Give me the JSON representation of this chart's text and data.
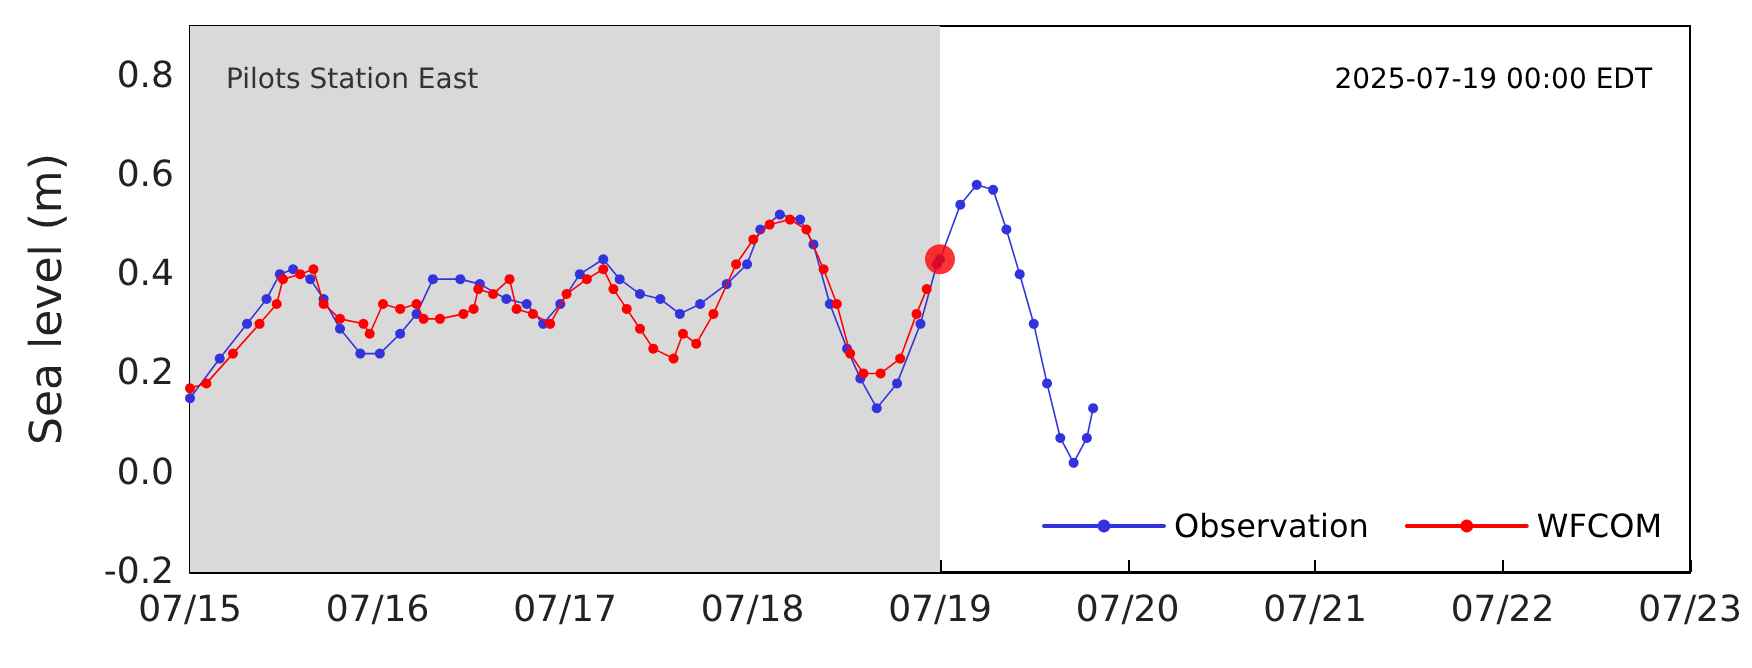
{
  "chart_data": {
    "type": "line",
    "ylabel": "Sea level (m)",
    "annotations": [
      "Pilots Station East",
      "2025-07-19 00:00 EDT"
    ],
    "xlim": [
      "2025-07-15",
      "2025-07-23"
    ],
    "xticks": [
      {
        "value": "2025-07-15",
        "label": "07/15"
      },
      {
        "value": "2025-07-16",
        "label": "07/16"
      },
      {
        "value": "2025-07-17",
        "label": "07/17"
      },
      {
        "value": "2025-07-18",
        "label": "07/18"
      },
      {
        "value": "2025-07-19",
        "label": "07/19"
      },
      {
        "value": "2025-07-20",
        "label": "07/20"
      },
      {
        "value": "2025-07-21",
        "label": "07/21"
      },
      {
        "value": "2025-07-22",
        "label": "07/22"
      },
      {
        "value": "2025-07-23",
        "label": "07/23"
      }
    ],
    "ylim": [
      -0.2,
      0.9
    ],
    "yticks": [
      -0.2,
      {
        "value": 0,
        "label": "0.0"
      },
      0.2,
      0.4,
      0.6,
      0.8
    ],
    "grid": false,
    "legend": "bottom right",
    "marker": "circle",
    "line_style": "solid",
    "bands": [
      {
        "axis": "x",
        "from": "2025-07-15",
        "to": "2025-07-19",
        "color": "#d9d9d9"
      }
    ],
    "series": [
      {
        "name": "Observation",
        "color": "#3333dd",
        "x": [
          "2025-07-15T00:00",
          "2025-07-15T03:48",
          "2025-07-15T07:18",
          "2025-07-15T09:48",
          "2025-07-15T11:30",
          "2025-07-15T13:12",
          "2025-07-15T15:24",
          "2025-07-15T17:06",
          "2025-07-15T19:12",
          "2025-07-15T21:48",
          "2025-07-16T00:18",
          "2025-07-16T02:54",
          "2025-07-16T05:00",
          "2025-07-16T07:06",
          "2025-07-16T10:36",
          "2025-07-16T13:06",
          "2025-07-16T16:30",
          "2025-07-16T19:06",
          "2025-07-16T21:12",
          "2025-07-16T23:24",
          "2025-07-17T01:54",
          "2025-07-17T04:54",
          "2025-07-17T07:00",
          "2025-07-17T09:36",
          "2025-07-17T12:12",
          "2025-07-17T14:42",
          "2025-07-17T17:18",
          "2025-07-17T20:42",
          "2025-07-17T23:18",
          "2025-07-18T01:00",
          "2025-07-18T03:30",
          "2025-07-18T06:06",
          "2025-07-18T07:48",
          "2025-07-18T09:54",
          "2025-07-18T12:06",
          "2025-07-18T13:48",
          "2025-07-18T15:54",
          "2025-07-18T18:30",
          "2025-07-18T21:30",
          "2025-07-18T23:36",
          "2025-07-19T00:00",
          "2025-07-19T02:36",
          "2025-07-19T04:42",
          "2025-07-19T06:48",
          "2025-07-19T08:30",
          "2025-07-19T10:12",
          "2025-07-19T12:00",
          "2025-07-19T13:42",
          "2025-07-19T15:24",
          "2025-07-19T17:06",
          "2025-07-19T18:48",
          "2025-07-19T19:36"
        ],
        "values": [
          0.15,
          0.23,
          0.3,
          0.35,
          0.4,
          0.41,
          0.39,
          0.35,
          0.29,
          0.24,
          0.24,
          0.28,
          0.32,
          0.39,
          0.39,
          0.38,
          0.35,
          0.34,
          0.3,
          0.34,
          0.4,
          0.43,
          0.39,
          0.36,
          0.35,
          0.32,
          0.34,
          0.38,
          0.42,
          0.49,
          0.52,
          0.51,
          0.46,
          0.34,
          0.25,
          0.19,
          0.13,
          0.18,
          0.3,
          0.42,
          0.43,
          0.54,
          0.58,
          0.57,
          0.49,
          0.4,
          0.3,
          0.18,
          0.07,
          0.02,
          0.07,
          0.13
        ]
      },
      {
        "name": "WFCOM",
        "color": "#ff0000",
        "x": [
          "2025-07-15T00:00",
          "2025-07-15T02:06",
          "2025-07-15T05:30",
          "2025-07-15T08:54",
          "2025-07-15T11:06",
          "2025-07-15T11:54",
          "2025-07-15T14:06",
          "2025-07-15T15:48",
          "2025-07-15T17:06",
          "2025-07-15T19:12",
          "2025-07-15T22:12",
          "2025-07-15T23:00",
          "2025-07-16T00:42",
          "2025-07-16T02:54",
          "2025-07-16T05:00",
          "2025-07-16T05:54",
          "2025-07-16T08:00",
          "2025-07-16T11:00",
          "2025-07-16T12:18",
          "2025-07-16T12:54",
          "2025-07-16T14:48",
          "2025-07-16T16:54",
          "2025-07-16T17:48",
          "2025-07-16T19:54",
          "2025-07-16T22:06",
          "2025-07-17T00:12",
          "2025-07-17T02:48",
          "2025-07-17T04:54",
          "2025-07-17T06:12",
          "2025-07-17T07:54",
          "2025-07-17T09:36",
          "2025-07-17T11:18",
          "2025-07-17T13:54",
          "2025-07-17T15:06",
          "2025-07-17T16:48",
          "2025-07-17T19:00",
          "2025-07-17T21:54",
          "2025-07-18T00:06",
          "2025-07-18T02:12",
          "2025-07-18T04:48",
          "2025-07-18T06:54",
          "2025-07-18T09:06",
          "2025-07-18T10:48",
          "2025-07-18T12:30",
          "2025-07-18T14:12",
          "2025-07-18T16:24",
          "2025-07-18T18:54",
          "2025-07-18T21:00",
          "2025-07-18T22:18"
        ],
        "values": [
          0.17,
          0.18,
          0.24,
          0.3,
          0.34,
          0.39,
          0.4,
          0.41,
          0.34,
          0.31,
          0.3,
          0.28,
          0.34,
          0.33,
          0.34,
          0.31,
          0.31,
          0.32,
          0.33,
          0.37,
          0.36,
          0.39,
          0.33,
          0.32,
          0.3,
          0.36,
          0.39,
          0.41,
          0.37,
          0.33,
          0.29,
          0.25,
          0.23,
          0.28,
          0.26,
          0.32,
          0.42,
          0.47,
          0.5,
          0.51,
          0.49,
          0.41,
          0.34,
          0.24,
          0.2,
          0.2,
          0.23,
          0.32,
          0.37
        ]
      },
      {
        "type": "scatter",
        "color": "#ff0000",
        "x": [
          "2025-07-19T00:00"
        ],
        "values": [
          0.43
        ]
      }
    ]
  }
}
